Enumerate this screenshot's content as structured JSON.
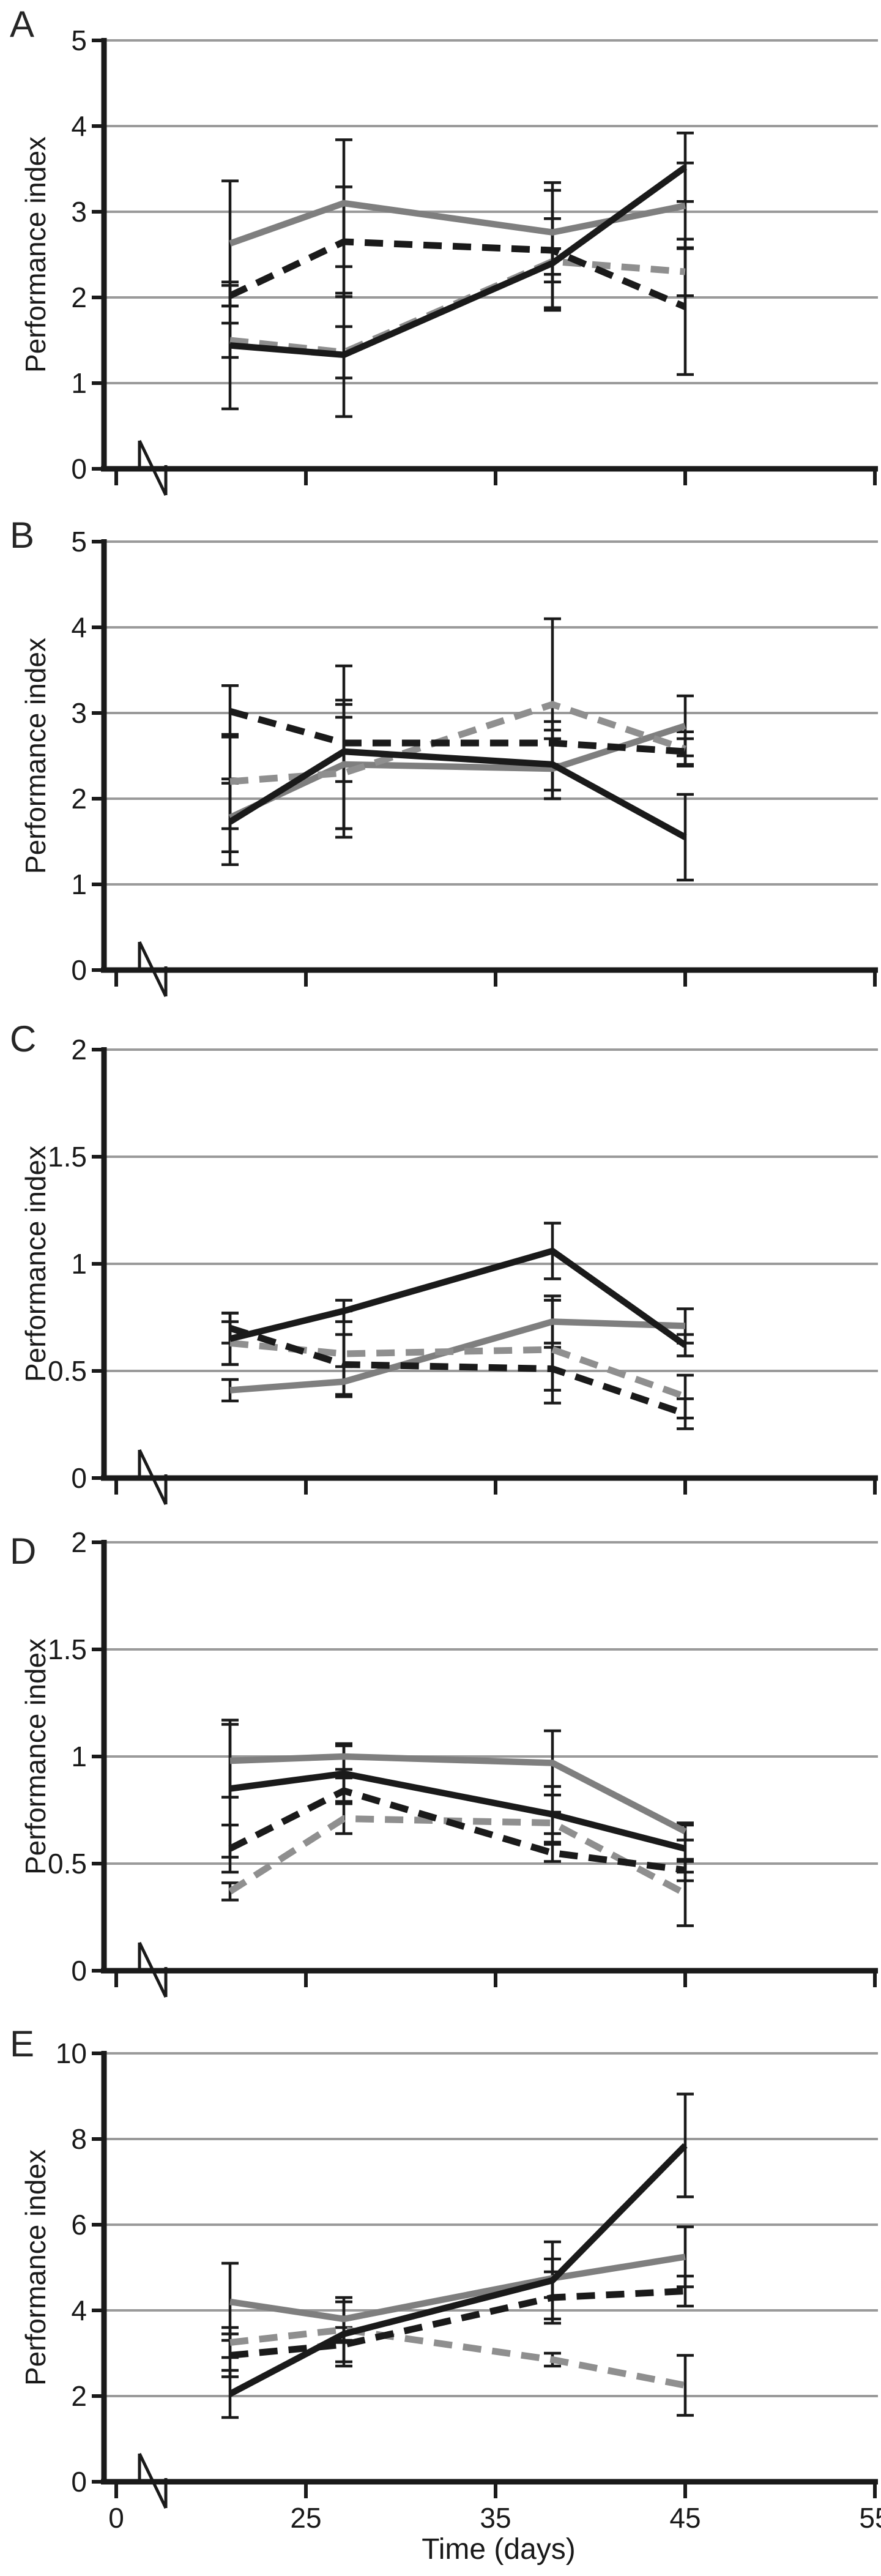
{
  "figure": {
    "background": "#ffffff",
    "kind": "five-panel scientific line figure"
  },
  "axes": {
    "y_label": "Performance index",
    "x_label": "Time (days)",
    "x_tick_labels": [
      "0",
      "25",
      "35",
      "45",
      "55"
    ],
    "x_break_near_origin": true
  },
  "colors": {
    "black_series": "#1a1a1a",
    "gray_series": "#7f7f7f",
    "gray_dashed_series": "#8f8f8f",
    "gridline": "#9a9a9a",
    "error_bar": "#1a1a1a"
  },
  "chart_data": {
    "type": "line",
    "x_label": "Time (days)",
    "x_ticks": [
      0,
      25,
      35,
      45,
      55
    ],
    "x_range": [
      0,
      55
    ],
    "x_days": [
      21,
      27,
      38,
      45
    ],
    "grid": true,
    "legend": "none",
    "panels": [
      {
        "letter": "A",
        "y_label": "Performance index",
        "ylim": [
          0,
          5
        ],
        "yticks": [
          0,
          1,
          2,
          3,
          4,
          5
        ],
        "series": [
          {
            "name": "gray-solid",
            "color": "#7f7f7f",
            "style": "solid",
            "values": [
              2.63,
              3.1,
              2.76,
              3.07
            ],
            "errors": [
              0.73,
              0.74,
              0.58,
              0.5
            ]
          },
          {
            "name": "gray-dashed",
            "color": "#8f8f8f",
            "style": "dashed",
            "values": [
              1.5,
              1.36,
              2.42,
              2.3
            ],
            "errors": [
              0.2,
              0.3,
              0.15,
              0.28
            ]
          },
          {
            "name": "black-dashed",
            "color": "#1a1a1a",
            "style": "dashed",
            "values": [
              2.02,
              2.65,
              2.55,
              1.89
            ],
            "errors": [
              0.12,
              0.64,
              0.7,
              0.79
            ]
          },
          {
            "name": "black-solid",
            "color": "#1a1a1a",
            "style": "solid",
            "values": [
              1.44,
              1.33,
              2.4,
              3.52
            ],
            "errors": [
              0.74,
              0.72,
              0.52,
              0.4
            ]
          }
        ]
      },
      {
        "letter": "B",
        "y_label": "Performance index",
        "ylim": [
          0,
          5
        ],
        "yticks": [
          0,
          1,
          2,
          3,
          4,
          5
        ],
        "series": [
          {
            "name": "gray-solid",
            "color": "#7f7f7f",
            "style": "solid",
            "values": [
              1.78,
              2.4,
              2.35,
              2.85
            ],
            "errors": [
              0.4,
              0.75,
              0.35,
              0.35
            ]
          },
          {
            "name": "gray-dashed",
            "color": "#8f8f8f",
            "style": "dashed",
            "values": [
              2.2,
              2.3,
              3.1,
              2.58
            ],
            "errors": [
              0.55,
              0.65,
              1.0,
              0.2
            ]
          },
          {
            "name": "black-dashed",
            "color": "#1a1a1a",
            "style": "dashed",
            "values": [
              3.02,
              2.65,
              2.65,
              2.55
            ],
            "errors": [
              0.3,
              0.45,
              0.25,
              0.15
            ]
          },
          {
            "name": "black-solid",
            "color": "#1a1a1a",
            "style": "solid",
            "values": [
              1.73,
              2.55,
              2.4,
              1.55
            ],
            "errors": [
              0.5,
              1.0,
              0.4,
              0.5
            ]
          }
        ]
      },
      {
        "letter": "C",
        "y_label": "Performance index",
        "ylim": [
          0,
          2
        ],
        "yticks": [
          0,
          0.5,
          1,
          1.5,
          2
        ],
        "series": [
          {
            "name": "gray-solid",
            "color": "#7f7f7f",
            "style": "solid",
            "values": [
              0.41,
              0.45,
              0.73,
              0.71
            ],
            "errors": [
              0.05,
              0.07,
              0.1,
              0.08
            ]
          },
          {
            "name": "gray-dashed",
            "color": "#8f8f8f",
            "style": "dashed",
            "values": [
              0.63,
              0.58,
              0.6,
              0.38
            ],
            "errors": [
              0.1,
              0.2,
              0.25,
              0.1
            ]
          },
          {
            "name": "black-dashed",
            "color": "#1a1a1a",
            "style": "dashed",
            "values": [
              0.7,
              0.53,
              0.51,
              0.3
            ],
            "errors": [
              0.07,
              0.14,
              0.1,
              0.07
            ]
          },
          {
            "name": "black-solid",
            "color": "#1a1a1a",
            "style": "solid",
            "values": [
              0.65,
              0.78,
              1.06,
              0.62
            ],
            "errors": [
              0.12,
              0.05,
              0.13,
              0.05
            ]
          }
        ]
      },
      {
        "letter": "D",
        "y_label": "Performance index",
        "ylim": [
          0,
          2
        ],
        "yticks": [
          0,
          0.5,
          1,
          1.5,
          2
        ],
        "series": [
          {
            "name": "gray-solid",
            "color": "#7f7f7f",
            "style": "solid",
            "values": [
              0.98,
              1.0,
              0.97,
              0.65
            ],
            "errors": [
              0.17,
              0.06,
              0.15,
              0.04
            ]
          },
          {
            "name": "gray-dashed",
            "color": "#8f8f8f",
            "style": "dashed",
            "values": [
              0.37,
              0.71,
              0.69,
              0.36
            ],
            "errors": [
              0.04,
              0.07,
              0.05,
              0.15
            ]
          },
          {
            "name": "black-dashed",
            "color": "#1a1a1a",
            "style": "dashed",
            "values": [
              0.57,
              0.84,
              0.55,
              0.47
            ],
            "errors": [
              0.11,
              0.06,
              0.04,
              0.05
            ]
          },
          {
            "name": "black-solid",
            "color": "#1a1a1a",
            "style": "solid",
            "values": [
              0.85,
              0.92,
              0.73,
              0.57
            ],
            "errors": [
              0.32,
              0.13,
              0.13,
              0.11
            ]
          }
        ]
      },
      {
        "letter": "E",
        "y_label": "Performance index",
        "ylim": [
          0,
          10
        ],
        "yticks": [
          0,
          2,
          4,
          6,
          8,
          10
        ],
        "series": [
          {
            "name": "gray-solid",
            "color": "#7f7f7f",
            "style": "solid",
            "values": [
              4.2,
              3.8,
              4.75,
              5.25
            ],
            "errors": [
              0.9,
              0.5,
              0.45,
              0.7
            ]
          },
          {
            "name": "gray-dashed",
            "color": "#8f8f8f",
            "style": "dashed",
            "values": [
              3.25,
              3.55,
              2.85,
              2.25
            ],
            "errors": [
              0.35,
              0.3,
              0.15,
              0.7
            ]
          },
          {
            "name": "black-dashed",
            "color": "#1a1a1a",
            "style": "dashed",
            "values": [
              2.95,
              3.2,
              4.3,
              4.45
            ],
            "errors": [
              0.5,
              0.4,
              0.6,
              0.35
            ]
          },
          {
            "name": "black-solid",
            "color": "#1a1a1a",
            "style": "solid",
            "values": [
              2.05,
              3.45,
              4.7,
              7.85
            ],
            "errors": [
              0.55,
              0.75,
              0.9,
              1.2
            ]
          }
        ]
      }
    ]
  }
}
